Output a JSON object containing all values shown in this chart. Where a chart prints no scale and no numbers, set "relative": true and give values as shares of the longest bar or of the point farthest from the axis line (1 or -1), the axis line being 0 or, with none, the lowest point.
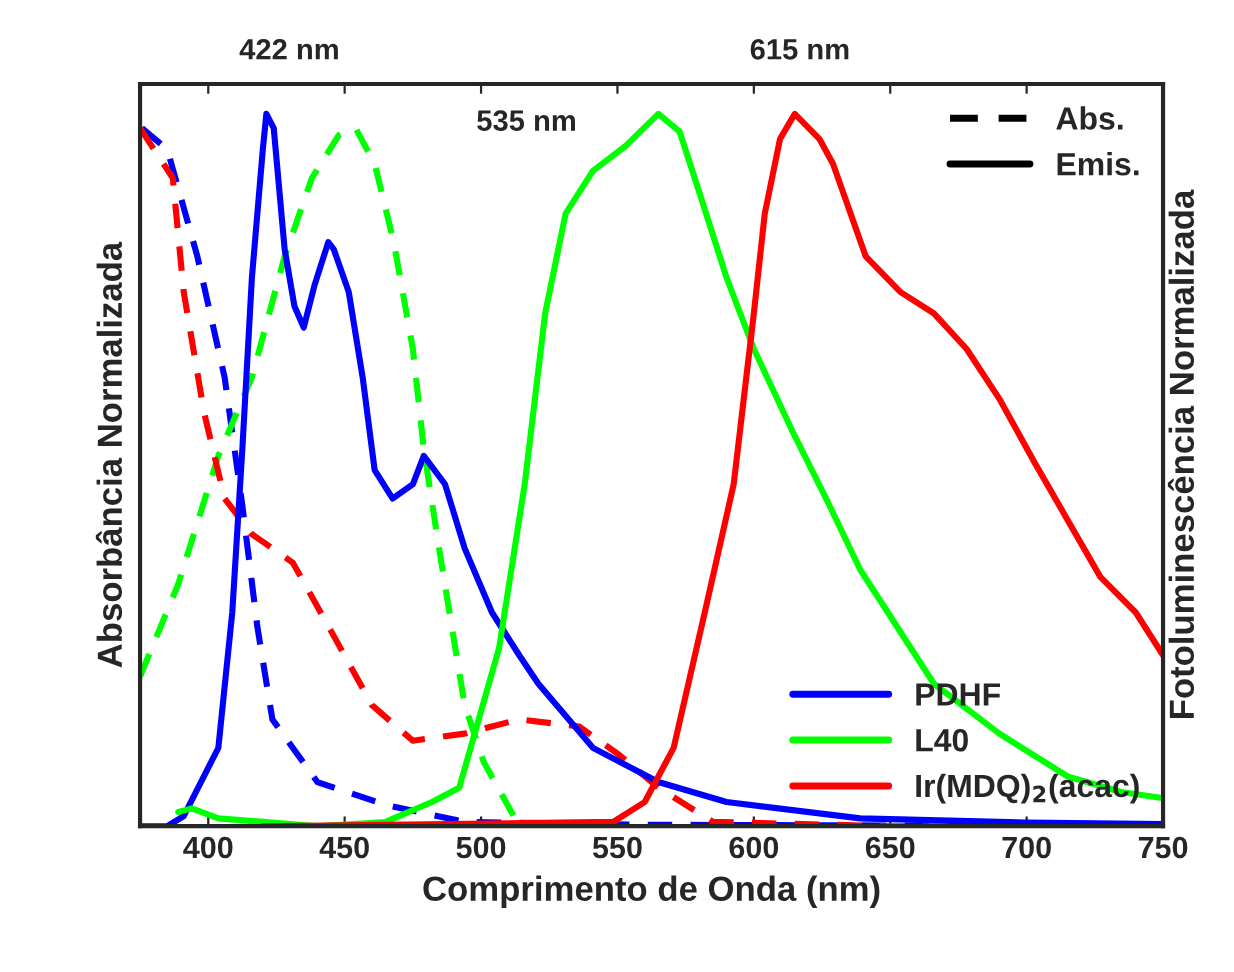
{
  "chart_data": {
    "type": "line",
    "relative": true,
    "xlabel": "Comprimento de Onda (nm)",
    "ylabel": "Absorbância Normalizada",
    "y2label": "Fotoluminescência Normalizada",
    "xlim": [
      375,
      750
    ],
    "xticks": [
      400,
      450,
      500,
      550,
      600,
      650,
      700,
      750
    ],
    "legend": "lower right",
    "grid": false,
    "annotations": [
      "422 nm",
      "615 nm",
      {
        "text": "535 nm",
        "x": 535,
        "y": 0.89
      },
      "Abs.",
      "Emis."
    ],
    "series": [
      {
        "color": "#0000ff",
        "line_style": "dashed",
        "x": [
          375.7,
          385,
          396,
          406,
          412.5,
          418,
          423.5,
          440,
          465,
          494,
          560,
          650,
          750
        ],
        "values": [
          0.98,
          0.95,
          0.8,
          0.63,
          0.45,
          0.28,
          0.15,
          0.062,
          0.03,
          0.006,
          0.002,
          0.001,
          0.0
        ]
      },
      {
        "color": "#00ff00",
        "line_style": "dashed",
        "x": [
          375,
          389,
          403.7,
          416,
          428,
          438,
          447.8,
          454,
          461,
          468,
          475,
          479,
          484.6,
          489.7,
          494,
          501,
          512,
          520
        ],
        "values": [
          0.21,
          0.34,
          0.52,
          0.63,
          0.8,
          0.91,
          0.97,
          0.98,
          0.93,
          0.82,
          0.67,
          0.53,
          0.39,
          0.27,
          0.17,
          0.09,
          0.014,
          0.0
        ]
      },
      {
        "color": "#ff0000",
        "line_style": "dashed",
        "x": [
          375,
          387,
          391,
          398.5,
          406,
          416,
          431,
          445.6,
          460,
          475,
          494,
          514,
          536,
          550.7,
          565,
          585,
          650,
          750
        ],
        "values": [
          0.98,
          0.91,
          0.75,
          0.58,
          0.46,
          0.41,
          0.37,
          0.27,
          0.17,
          0.12,
          0.13,
          0.15,
          0.14,
          0.1,
          0.054,
          0.006,
          0.0,
          0.0
        ]
      },
      {
        "name": "PDHF",
        "color": "#0000ff",
        "line_style": "solid",
        "x": [
          375,
          385,
          391,
          403.7,
          408.8,
          412.5,
          416,
          420,
          421.3,
          424,
          428,
          431.6,
          435,
          439,
          444,
          446,
          451.5,
          456.6,
          461,
          467.6,
          475,
          479,
          486.8,
          494,
          504,
          514,
          521,
          541,
          565,
          590,
          639,
          700,
          750
        ],
        "values": [
          0.0,
          0.0,
          0.014,
          0.11,
          0.3,
          0.53,
          0.77,
          0.95,
          1.0,
          0.98,
          0.81,
          0.73,
          0.7,
          0.76,
          0.82,
          0.81,
          0.75,
          0.63,
          0.5,
          0.46,
          0.48,
          0.52,
          0.48,
          0.39,
          0.3,
          0.24,
          0.2,
          0.11,
          0.062,
          0.034,
          0.011,
          0.005,
          0.003
        ]
      },
      {
        "name": "L40",
        "color": "#00ff00",
        "line_style": "solid",
        "x": [
          389,
          394,
          403.7,
          440,
          465,
          482,
          492,
          506.6,
          516,
          523.5,
          531,
          541,
          553,
          565,
          572.8,
          580,
          590,
          600,
          614.7,
          626.5,
          639,
          666,
          690,
          715,
          734.6,
          749
        ],
        "values": [
          0.02,
          0.025,
          0.011,
          0.0,
          0.006,
          0.034,
          0.054,
          0.25,
          0.48,
          0.72,
          0.86,
          0.92,
          0.955,
          1.0,
          0.975,
          0.89,
          0.77,
          0.67,
          0.55,
          0.46,
          0.36,
          0.2,
          0.13,
          0.07,
          0.048,
          0.04
        ]
      },
      {
        "name": "Ir(MDQ)$_{2}$(acac)",
        "color": "#ff0000",
        "line_style": "solid",
        "x": [
          420,
          548.5,
          560,
          570.6,
          582,
          592.6,
          600,
          604,
          609.6,
          615,
          624,
          629,
          641,
          653.7,
          666,
          678,
          690,
          703,
          715,
          727,
          740,
          750
        ],
        "values": [
          0.0,
          0.006,
          0.034,
          0.11,
          0.3,
          0.48,
          0.72,
          0.86,
          0.965,
          1.0,
          0.965,
          0.93,
          0.8,
          0.75,
          0.72,
          0.67,
          0.6,
          0.51,
          0.43,
          0.35,
          0.3,
          0.24
        ]
      }
    ]
  }
}
